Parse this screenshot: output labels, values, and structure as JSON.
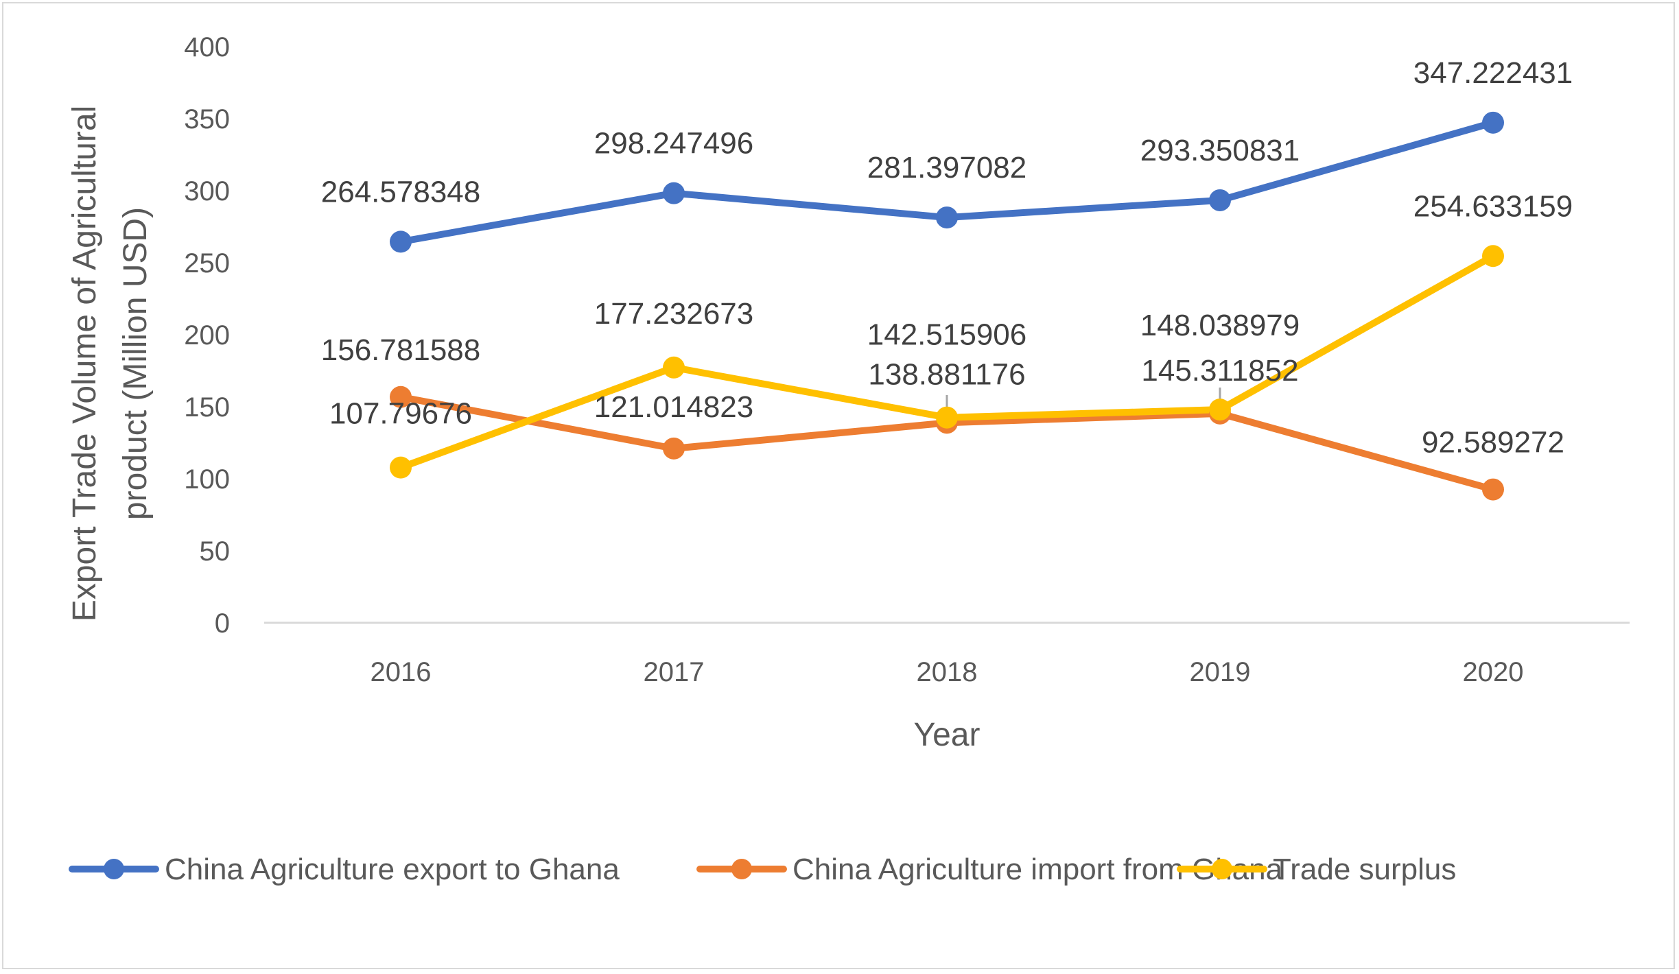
{
  "chart_data": {
    "type": "line",
    "title": "",
    "xlabel": "Year",
    "ylabel_lines": [
      "Export Trade Volume of Agricultural",
      "product (Million USD)"
    ],
    "categories": [
      "2016",
      "2017",
      "2018",
      "2019",
      "2020"
    ],
    "ylim": [
      0,
      400
    ],
    "yticks": [
      0,
      50,
      100,
      150,
      200,
      250,
      300,
      350,
      400
    ],
    "ytick_labels": [
      "0",
      "50",
      "100",
      "150",
      "200",
      "250",
      "300",
      "350",
      "400"
    ],
    "grid": false,
    "legend_position": "bottom",
    "series": [
      {
        "name": "China Agriculture export to Ghana",
        "color": "#4472c4",
        "values": [
          264.578348,
          298.247496,
          281.397082,
          293.350831,
          347.222431
        ],
        "labels": [
          "264.578348",
          "298.247496",
          "281.397082",
          "293.350831",
          "347.222431"
        ]
      },
      {
        "name": "China Agriculture import from Ghana",
        "color": "#ed7d31",
        "values": [
          156.781588,
          121.014823,
          138.881176,
          145.311852,
          92.589272
        ],
        "labels": [
          "156.781588",
          "121.014823",
          "138.881176",
          "145.311852",
          "92.589272"
        ]
      },
      {
        "name": "Trade surplus",
        "color": "#ffc000",
        "values": [
          107.79676,
          177.232673,
          142.515906,
          148.038979,
          254.633159
        ],
        "labels": [
          "107.79676",
          "177.232673",
          "142.515906",
          "148.038979",
          "254.633159"
        ]
      }
    ]
  }
}
